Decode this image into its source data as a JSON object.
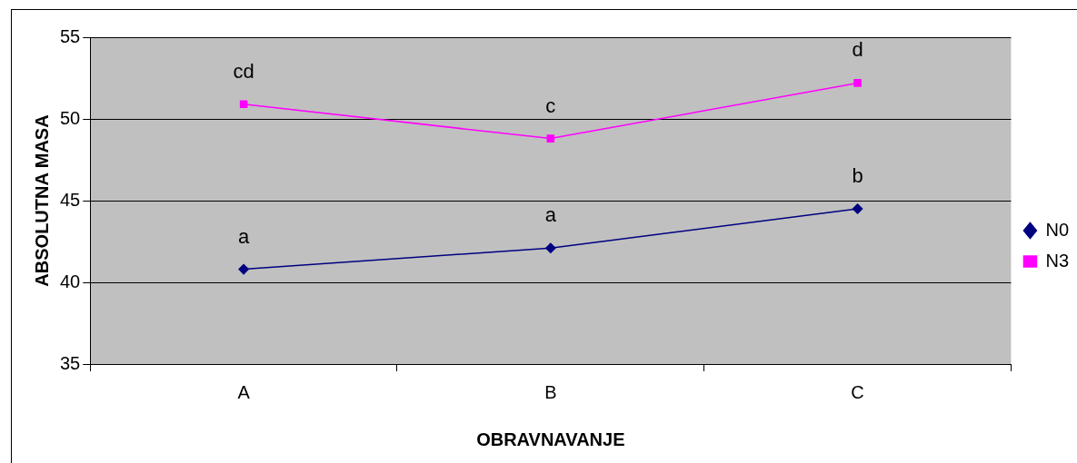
{
  "chart_data": {
    "type": "line",
    "xlabel": "OBRAVNAVANJE",
    "ylabel": "ABSOLUTNA MASA",
    "categories": [
      "A",
      "B",
      "C"
    ],
    "series": [
      {
        "name": "N0",
        "color": "#000080",
        "marker": "diamond",
        "values": [
          40.8,
          42.1,
          44.5
        ]
      },
      {
        "name": "N3",
        "color": "#ff00ff",
        "marker": "square",
        "values": [
          50.9,
          48.8,
          52.2
        ]
      }
    ],
    "ylim": [
      35,
      55
    ],
    "yticks": [
      35,
      40,
      45,
      50,
      55
    ],
    "grid": "y",
    "legend": "right",
    "line_style": "solid",
    "annotations": [
      {
        "text": "a",
        "x": "A",
        "y": 40.8
      },
      {
        "text": "a",
        "x": "B",
        "y": 42.1
      },
      {
        "text": "b",
        "x": "C",
        "y": 44.5
      },
      {
        "text": "cd",
        "x": "A",
        "y": 50.9
      },
      {
        "text": "c",
        "x": "B",
        "y": 48.8
      },
      {
        "text": "d",
        "x": "C",
        "y": 52.2
      }
    ]
  }
}
